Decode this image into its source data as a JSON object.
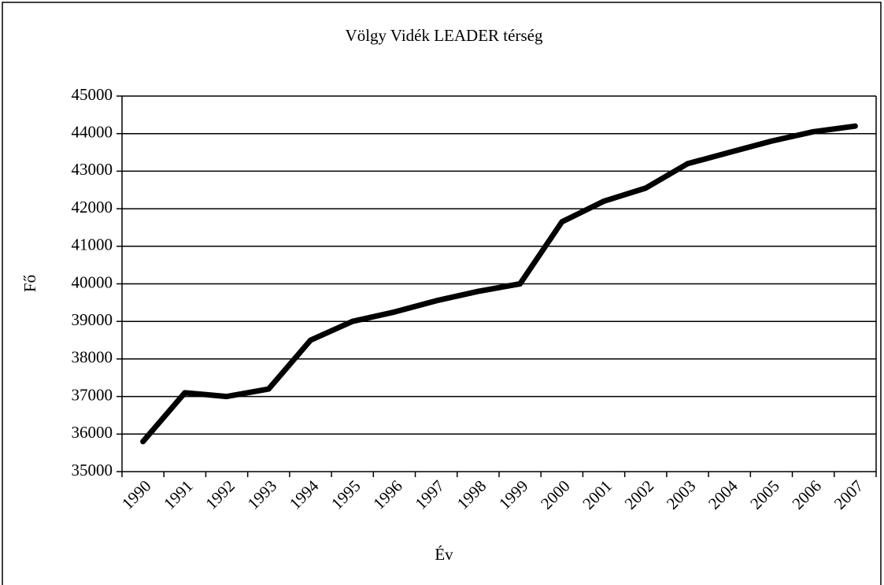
{
  "chart_data": {
    "type": "line",
    "title": "Völgy Vidék LEADER térség",
    "x_label": "Év",
    "y_label": "Fő",
    "categories": [
      "1990",
      "1991",
      "1992",
      "1993",
      "1994",
      "1995",
      "1996",
      "1997",
      "1998",
      "1999",
      "2000",
      "2001",
      "2002",
      "2003",
      "2004",
      "2005",
      "2006",
      "2007"
    ],
    "series": [
      {
        "name": "Völgy Vidék LEADER térség",
        "color": "#000000",
        "values": [
          35800,
          37100,
          37000,
          37200,
          38500,
          39000,
          39250,
          39550,
          39800,
          40000,
          41650,
          42200,
          42550,
          43200,
          43500,
          43800,
          44050,
          44200
        ]
      }
    ],
    "ylim": [
      35000,
      45000
    ],
    "yticks": [
      35000,
      36000,
      37000,
      38000,
      39000,
      40000,
      41000,
      42000,
      43000,
      44000,
      45000
    ],
    "grid": true
  }
}
